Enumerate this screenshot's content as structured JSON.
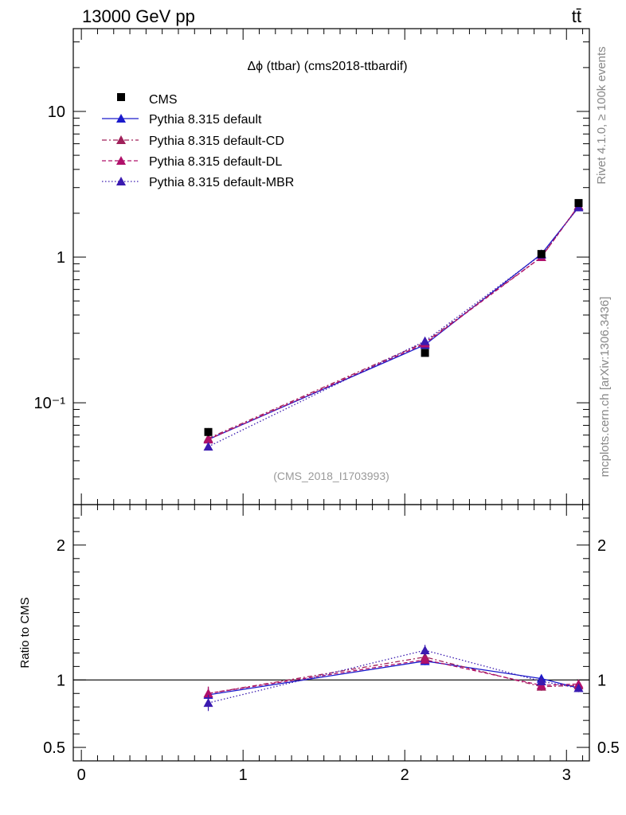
{
  "header": {
    "left": "13000 GeV pp",
    "right": "tt̄"
  },
  "side_labels": {
    "rivet": "Rivet 4.1.0, ≥ 100k events",
    "mcplots": "mcplots.cern.ch [arXiv:1306.3436]"
  },
  "chart_data": {
    "type": "line",
    "title": "Δϕ (ttbar) (cms2018-ttbardif)",
    "watermark": "(CMS_2018_I1703993)",
    "xlabel": "",
    "ylabel": "",
    "ratio_ylabel": "Ratio to CMS",
    "xlim": [
      -0.05,
      3.1416
    ],
    "ylim": [
      0.02,
      37
    ],
    "yscale": "log",
    "ratio_ylim": [
      0.4,
      2.3
    ],
    "x_ticks": [
      0,
      1,
      2,
      3
    ],
    "x_tick_labels": [
      "0",
      "1",
      "2",
      "3"
    ],
    "y_ticks": [
      0.1,
      1,
      10
    ],
    "y_tick_labels": [
      "10⁻¹",
      "1",
      "10"
    ],
    "ratio_ticks": [
      0.5,
      1,
      2
    ],
    "ratio_tick_labels": [
      "0.5",
      "1",
      "2"
    ],
    "legend_position": "top-left",
    "x": [
      0.785,
      2.125,
      2.845,
      3.075
    ],
    "data": {
      "name": "CMS",
      "values": [
        0.063,
        0.22,
        1.05,
        2.35
      ],
      "errors": [
        0.004,
        0.01,
        0.04,
        0.08
      ]
    },
    "series": [
      {
        "name": "Pythia 8.315 default",
        "color": "#1a1acc",
        "dash": "none",
        "values": [
          0.056,
          0.25,
          1.05,
          2.2
        ],
        "ratio": [
          0.89,
          1.14,
          1.01,
          0.94
        ],
        "ratio_err": [
          0.05,
          0.03,
          0.03,
          0.03
        ]
      },
      {
        "name": "Pythia 8.315 default-CD",
        "color": "#a0205a",
        "dash": "6,3,2,3",
        "values": [
          0.057,
          0.26,
          1.0,
          2.25
        ],
        "ratio": [
          0.9,
          1.17,
          0.95,
          0.96
        ],
        "ratio_err": [
          0.05,
          0.03,
          0.03,
          0.03
        ]
      },
      {
        "name": "Pythia 8.315 default-DL",
        "color": "#b0106a",
        "dash": "5,3",
        "values": [
          0.056,
          0.255,
          1.0,
          2.25
        ],
        "ratio": [
          0.9,
          1.15,
          0.96,
          0.97
        ],
        "ratio_err": [
          0.05,
          0.03,
          0.03,
          0.03
        ]
      },
      {
        "name": "Pythia 8.315 default-MBR",
        "color": "#3a1ab0",
        "dash": "1.5,2.5",
        "values": [
          0.05,
          0.265,
          1.04,
          2.2
        ],
        "ratio": [
          0.83,
          1.22,
          0.99,
          0.94
        ],
        "ratio_err": [
          0.06,
          0.04,
          0.03,
          0.03
        ]
      }
    ]
  }
}
